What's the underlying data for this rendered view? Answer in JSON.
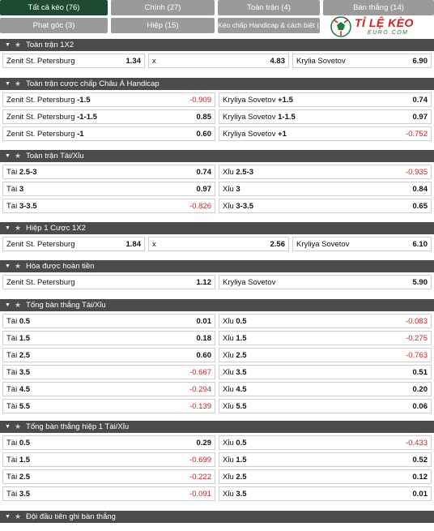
{
  "tabs": [
    {
      "label": "Tất cả kèo (76)",
      "active": true
    },
    {
      "label": "Chính (27)"
    },
    {
      "label": "Toàn trận (4)"
    },
    {
      "label": "Bàn thắng (14)"
    },
    {
      "label": "Phạt góc (3)"
    },
    {
      "label": "Hiệp (15)"
    },
    {
      "label": "Kèo chấp Handicap & cách biệt (3)"
    }
  ],
  "logo": {
    "brand": "TỈ LỆ KÈO",
    "sub": "EURO.COM"
  },
  "sections": [
    {
      "title": "Toàn trận 1X2",
      "cols": 3,
      "rows": [
        [
          {
            "label": "Zenit St. Petersburg",
            "odd": "1.34"
          },
          {
            "label": "x",
            "odd": "4.83"
          },
          {
            "label": "Krylia Sovetov",
            "odd": "6.90"
          }
        ]
      ]
    },
    {
      "title": "Toàn trận cược chấp Châu Á Handicap",
      "cols": 2,
      "rows": [
        [
          {
            "label": "Zenit St. Petersburg",
            "line": "-1.5",
            "odd": "-0.909",
            "neg": true
          },
          {
            "label": "Kryliya Sovetov",
            "line": "+1.5",
            "odd": "0.74"
          }
        ],
        [
          {
            "label": "Zenit St. Petersburg",
            "line": "-1-1.5",
            "odd": "0.85"
          },
          {
            "label": "Kryliya Sovetov",
            "line": "1-1.5",
            "odd": "0.97"
          }
        ],
        [
          {
            "label": "Zenit St. Petersburg",
            "line": "-1",
            "odd": "0.60"
          },
          {
            "label": "Kryliya Sovetov",
            "line": "+1",
            "odd": "-0.752",
            "neg": true
          }
        ]
      ]
    },
    {
      "title": "Toàn trận Tài/Xỉu",
      "cols": 2,
      "rows": [
        [
          {
            "label": "Tài",
            "line": "2.5-3",
            "odd": "0.74"
          },
          {
            "label": "Xỉu",
            "line": "2.5-3",
            "odd": "-0.935",
            "neg": true
          }
        ],
        [
          {
            "label": "Tài",
            "line": "3",
            "odd": "0.97"
          },
          {
            "label": "Xỉu",
            "line": "3",
            "odd": "0.84"
          }
        ],
        [
          {
            "label": "Tài",
            "line": "3-3.5",
            "odd": "-0.826",
            "neg": true
          },
          {
            "label": "Xỉu",
            "line": "3-3.5",
            "odd": "0.65"
          }
        ]
      ]
    },
    {
      "title": "Hiệp 1 Cược 1X2",
      "cols": 3,
      "rows": [
        [
          {
            "label": "Zenit St. Petersburg",
            "odd": "1.84"
          },
          {
            "label": "x",
            "odd": "2.56"
          },
          {
            "label": "Kryliya Sovetov",
            "odd": "6.10"
          }
        ]
      ]
    },
    {
      "title": "Hòa được hoàn tiền",
      "cols": 2,
      "rows": [
        [
          {
            "label": "Zenit St. Petersburg",
            "odd": "1.12"
          },
          {
            "label": "Kryliya Sovetov",
            "odd": "5.90"
          }
        ]
      ]
    },
    {
      "title": "Tổng bàn thắng Tài/Xỉu",
      "cols": 2,
      "rows": [
        [
          {
            "label": "Tài",
            "line": "0.5",
            "odd": "0.01"
          },
          {
            "label": "Xỉu",
            "line": "0.5",
            "odd": "-0.083",
            "neg": true
          }
        ],
        [
          {
            "label": "Tài",
            "line": "1.5",
            "odd": "0.18"
          },
          {
            "label": "Xỉu",
            "line": "1.5",
            "odd": "-0.275",
            "neg": true
          }
        ],
        [
          {
            "label": "Tài",
            "line": "2.5",
            "odd": "0.60"
          },
          {
            "label": "Xỉu",
            "line": "2.5",
            "odd": "-0.763",
            "neg": true
          }
        ],
        [
          {
            "label": "Tài",
            "line": "3.5",
            "odd": "-0.667",
            "neg": true
          },
          {
            "label": "Xỉu",
            "line": "3.5",
            "odd": "0.51"
          }
        ],
        [
          {
            "label": "Tài",
            "line": "4.5",
            "odd": "-0.294",
            "neg": true
          },
          {
            "label": "Xỉu",
            "line": "4.5",
            "odd": "0.20"
          }
        ],
        [
          {
            "label": "Tài",
            "line": "5.5",
            "odd": "-0.139",
            "neg": true
          },
          {
            "label": "Xỉu",
            "line": "5.5",
            "odd": "0.06"
          }
        ]
      ]
    },
    {
      "title": "Tổng bàn thắng hiệp 1 Tài/Xỉu",
      "cols": 2,
      "rows": [
        [
          {
            "label": "Tài",
            "line": "0.5",
            "odd": "0.29"
          },
          {
            "label": "Xỉu",
            "line": "0.5",
            "odd": "-0.433",
            "neg": true
          }
        ],
        [
          {
            "label": "Tài",
            "line": "1.5",
            "odd": "-0.699",
            "neg": true
          },
          {
            "label": "Xỉu",
            "line": "1.5",
            "odd": "0.52"
          }
        ],
        [
          {
            "label": "Tài",
            "line": "2.5",
            "odd": "-0.222",
            "neg": true
          },
          {
            "label": "Xỉu",
            "line": "2.5",
            "odd": "0.12"
          }
        ],
        [
          {
            "label": "Tài",
            "line": "3.5",
            "odd": "-0.091",
            "neg": true
          },
          {
            "label": "Xỉu",
            "line": "3.5",
            "odd": "0.01"
          }
        ]
      ]
    },
    {
      "title": "Đội đầu tiên ghi bàn thắng",
      "cols": 2,
      "rows": []
    }
  ]
}
